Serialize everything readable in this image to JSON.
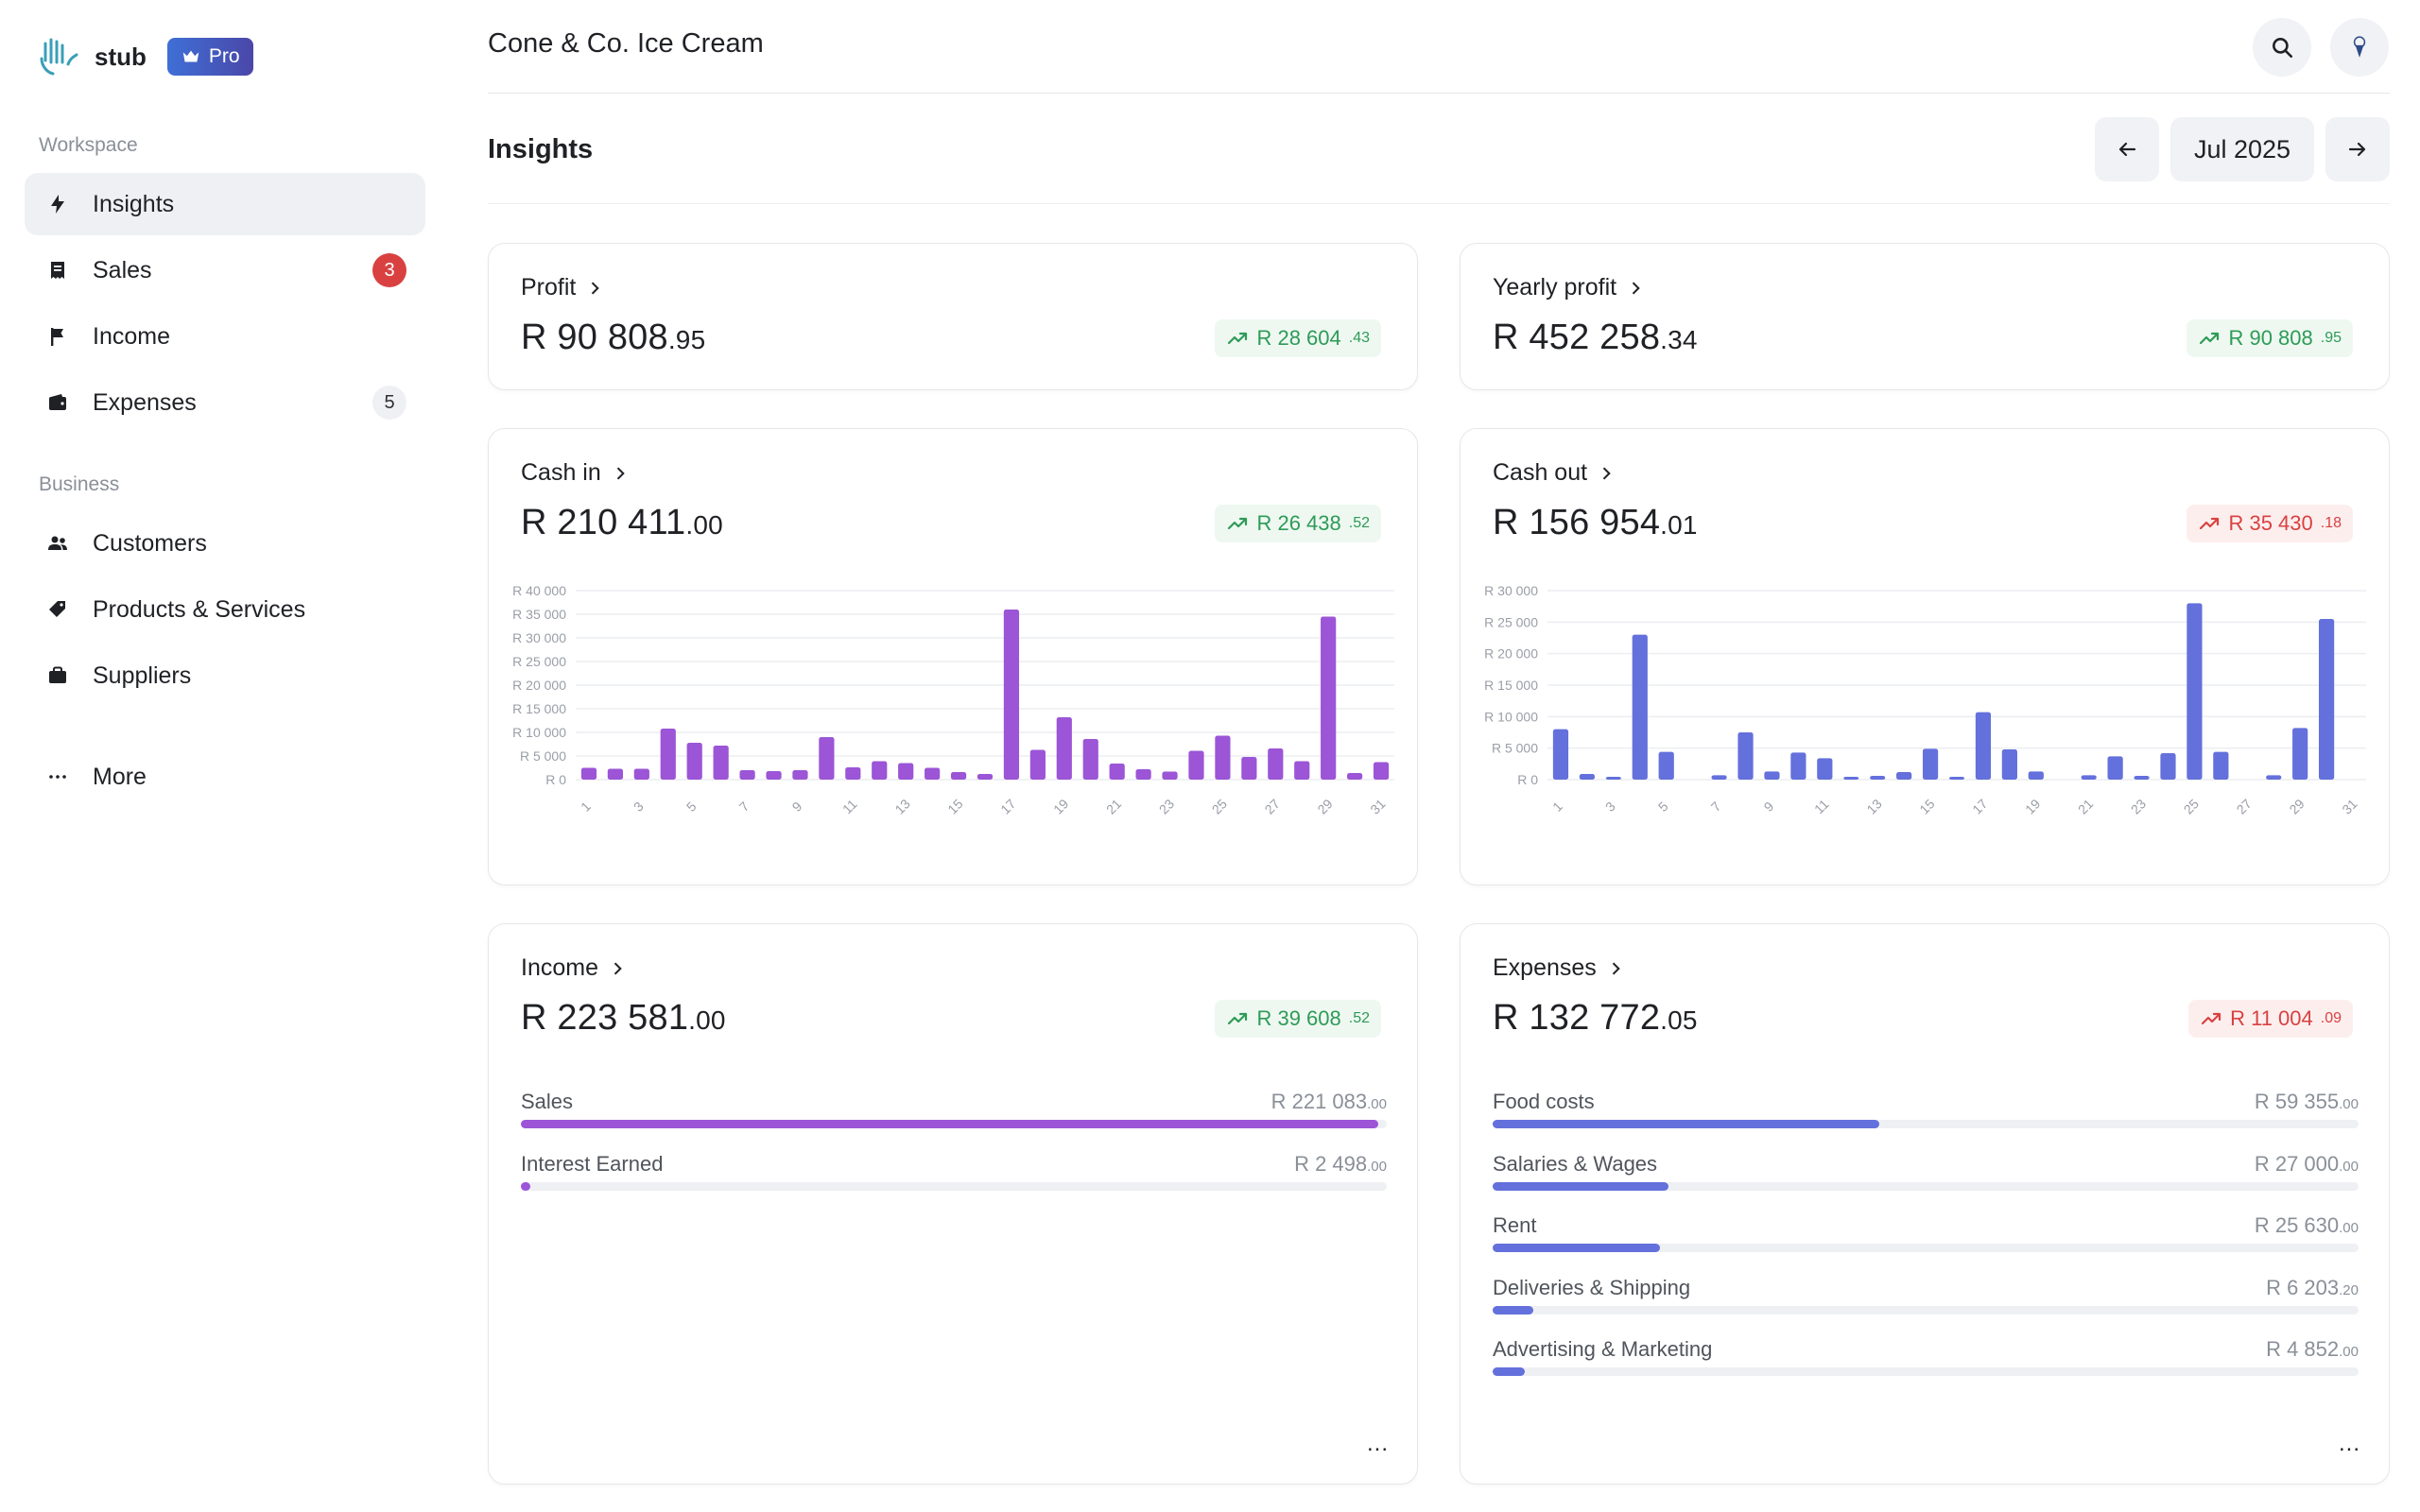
{
  "app": {
    "name": "stub",
    "badge": "Pro"
  },
  "sidebar": {
    "sections": [
      {
        "title": "Workspace",
        "items": [
          {
            "label": "Insights",
            "icon": "bolt-icon",
            "active": true
          },
          {
            "label": "Sales",
            "icon": "receipt-icon",
            "badge": "3",
            "badge_style": "red"
          },
          {
            "label": "Income",
            "icon": "flag-icon"
          },
          {
            "label": "Expenses",
            "icon": "wallet-icon",
            "badge": "5",
            "badge_style": "grey"
          }
        ]
      },
      {
        "title": "Business",
        "items": [
          {
            "label": "Customers",
            "icon": "people-icon"
          },
          {
            "label": "Products & Services",
            "icon": "tag-icon"
          },
          {
            "label": "Suppliers",
            "icon": "briefcase-icon"
          }
        ]
      }
    ],
    "more_label": "More"
  },
  "header": {
    "business_name": "Cone & Co. Ice Cream"
  },
  "page": {
    "title": "Insights",
    "period": "Jul 2025"
  },
  "colors": {
    "purple": "#9b55d6",
    "blue": "#6470dc",
    "green": "#2e9b57",
    "red": "#d94141"
  },
  "cards": {
    "profit": {
      "title": "Profit",
      "amount": "R 90 808",
      "cents": ".95",
      "trend": "R 28 604",
      "trend_cents": ".43",
      "trend_dir": "up"
    },
    "yearly_profit": {
      "title": "Yearly profit",
      "amount": "R 452 258",
      "cents": ".34",
      "trend": "R 90 808",
      "trend_cents": ".95",
      "trend_dir": "up"
    },
    "cash_in": {
      "title": "Cash in",
      "amount": "R 210 411",
      "cents": ".00",
      "trend": "R 26 438",
      "trend_cents": ".52",
      "trend_dir": "up"
    },
    "cash_out": {
      "title": "Cash out",
      "amount": "R 156 954",
      "cents": ".01",
      "trend": "R 35 430",
      "trend_cents": ".18",
      "trend_dir": "down"
    },
    "income": {
      "title": "Income",
      "amount": "R 223 581",
      "cents": ".00",
      "trend": "R 39 608",
      "trend_cents": ".52",
      "trend_dir": "up",
      "rows": [
        {
          "label": "Sales",
          "value": "R 221 083",
          "cents": ".00",
          "fraction": 0.99
        },
        {
          "label": "Interest Earned",
          "value": "R 2 498",
          "cents": ".00",
          "fraction": 0.011
        }
      ],
      "more": "..."
    },
    "expenses": {
      "title": "Expenses",
      "amount": "R 132 772",
      "cents": ".05",
      "trend": "R 11 004",
      "trend_cents": ".09",
      "trend_dir": "down",
      "rows": [
        {
          "label": "Food costs",
          "value": "R 59 355",
          "cents": ".00",
          "fraction": 0.447
        },
        {
          "label": "Salaries & Wages",
          "value": "R 27 000",
          "cents": ".00",
          "fraction": 0.203
        },
        {
          "label": "Rent",
          "value": "R 25 630",
          "cents": ".00",
          "fraction": 0.193
        },
        {
          "label": "Deliveries & Shipping",
          "value": "R 6 203",
          "cents": ".20",
          "fraction": 0.047
        },
        {
          "label": "Advertising & Marketing",
          "value": "R 4 852",
          "cents": ".00",
          "fraction": 0.037
        }
      ],
      "more": "..."
    }
  },
  "chart_data": [
    {
      "type": "bar",
      "name": "Cash in",
      "color": "#9b55d6",
      "ylim": [
        0,
        40000
      ],
      "yticks": [
        "R 0",
        "R 5 000",
        "R 10 000",
        "R 15 000",
        "R 20 000",
        "R 25 000",
        "R 30 000",
        "R 35 000",
        "R 40 000"
      ],
      "categories": [
        "1",
        "2",
        "3",
        "4",
        "5",
        "6",
        "7",
        "8",
        "9",
        "10",
        "11",
        "12",
        "13",
        "14",
        "15",
        "16",
        "17",
        "18",
        "19",
        "20",
        "21",
        "22",
        "23",
        "24",
        "25",
        "26",
        "27",
        "28",
        "29",
        "30",
        "31"
      ],
      "xtick_labels": [
        "1",
        "3",
        "5",
        "7",
        "9",
        "11",
        "13",
        "15",
        "17",
        "19",
        "21",
        "23",
        "25",
        "27",
        "29",
        "31"
      ],
      "values": [
        2500,
        2300,
        2300,
        10800,
        7800,
        7200,
        2000,
        1800,
        2000,
        9000,
        2600,
        3900,
        3500,
        2500,
        1600,
        1200,
        36000,
        6300,
        13200,
        8600,
        3400,
        2200,
        1700,
        6100,
        9300,
        4800,
        6600,
        3900,
        34500,
        1400,
        3700
      ]
    },
    {
      "type": "bar",
      "name": "Cash out",
      "color": "#6470dc",
      "ylim": [
        0,
        30000
      ],
      "yticks": [
        "R 0",
        "R 5 000",
        "R 10 000",
        "R 15 000",
        "R 20 000",
        "R 25 000",
        "R 30 000"
      ],
      "categories": [
        "1",
        "2",
        "3",
        "4",
        "5",
        "6",
        "7",
        "8",
        "9",
        "10",
        "11",
        "12",
        "13",
        "14",
        "15",
        "16",
        "17",
        "18",
        "19",
        "20",
        "21",
        "22",
        "23",
        "24",
        "25",
        "26",
        "27",
        "28",
        "29",
        "30",
        "31"
      ],
      "xtick_labels": [
        "1",
        "3",
        "5",
        "7",
        "9",
        "11",
        "13",
        "15",
        "17",
        "19",
        "21",
        "23",
        "25",
        "27",
        "29",
        "31"
      ],
      "values": [
        8000,
        900,
        400,
        23000,
        4400,
        0,
        700,
        7500,
        1300,
        4300,
        3400,
        400,
        600,
        1200,
        4900,
        300,
        10700,
        4800,
        1300,
        0,
        700,
        3700,
        600,
        4200,
        28000,
        4400,
        0,
        700,
        8200,
        25500,
        0
      ]
    }
  ]
}
